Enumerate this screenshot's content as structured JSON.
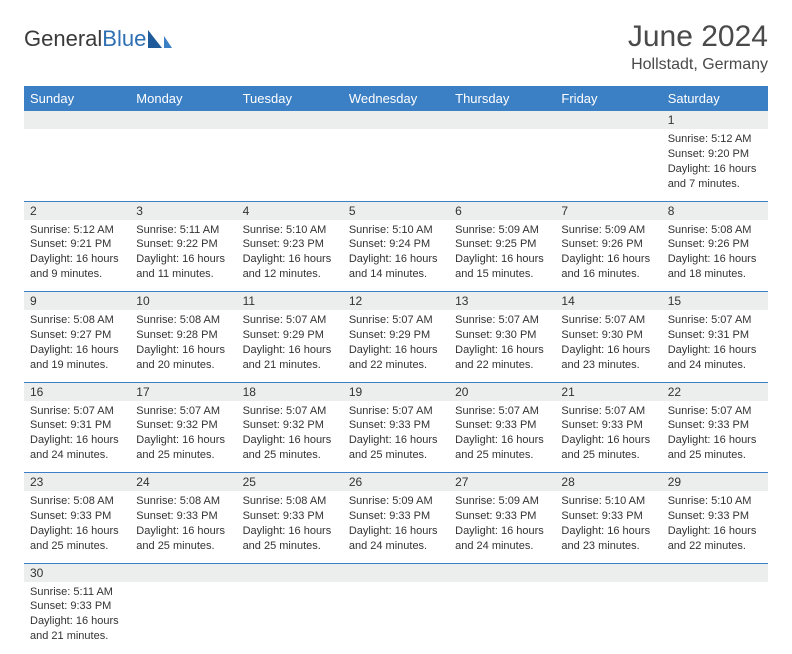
{
  "brand": {
    "general": "General",
    "blue": "Blue"
  },
  "title": "June 2024",
  "location": "Hollstadt, Germany",
  "colors": {
    "header_bg": "#3b7fc4",
    "header_text": "#ffffff",
    "daynum_bg": "#eceded",
    "border": "#3b7fc4",
    "text": "#333333",
    "brand_blue": "#2f6fb3"
  },
  "fonts": {
    "title_size": 30,
    "location_size": 16,
    "th_size": 13,
    "cell_size": 11
  },
  "weekdays": [
    "Sunday",
    "Monday",
    "Tuesday",
    "Wednesday",
    "Thursday",
    "Friday",
    "Saturday"
  ],
  "weeks": [
    {
      "nums": [
        "",
        "",
        "",
        "",
        "",
        "",
        "1"
      ],
      "cells": [
        null,
        null,
        null,
        null,
        null,
        null,
        {
          "sunrise": "Sunrise: 5:12 AM",
          "sunset": "Sunset: 9:20 PM",
          "d1": "Daylight: 16 hours",
          "d2": "and 7 minutes."
        }
      ]
    },
    {
      "nums": [
        "2",
        "3",
        "4",
        "5",
        "6",
        "7",
        "8"
      ],
      "cells": [
        {
          "sunrise": "Sunrise: 5:12 AM",
          "sunset": "Sunset: 9:21 PM",
          "d1": "Daylight: 16 hours",
          "d2": "and 9 minutes."
        },
        {
          "sunrise": "Sunrise: 5:11 AM",
          "sunset": "Sunset: 9:22 PM",
          "d1": "Daylight: 16 hours",
          "d2": "and 11 minutes."
        },
        {
          "sunrise": "Sunrise: 5:10 AM",
          "sunset": "Sunset: 9:23 PM",
          "d1": "Daylight: 16 hours",
          "d2": "and 12 minutes."
        },
        {
          "sunrise": "Sunrise: 5:10 AM",
          "sunset": "Sunset: 9:24 PM",
          "d1": "Daylight: 16 hours",
          "d2": "and 14 minutes."
        },
        {
          "sunrise": "Sunrise: 5:09 AM",
          "sunset": "Sunset: 9:25 PM",
          "d1": "Daylight: 16 hours",
          "d2": "and 15 minutes."
        },
        {
          "sunrise": "Sunrise: 5:09 AM",
          "sunset": "Sunset: 9:26 PM",
          "d1": "Daylight: 16 hours",
          "d2": "and 16 minutes."
        },
        {
          "sunrise": "Sunrise: 5:08 AM",
          "sunset": "Sunset: 9:26 PM",
          "d1": "Daylight: 16 hours",
          "d2": "and 18 minutes."
        }
      ]
    },
    {
      "nums": [
        "9",
        "10",
        "11",
        "12",
        "13",
        "14",
        "15"
      ],
      "cells": [
        {
          "sunrise": "Sunrise: 5:08 AM",
          "sunset": "Sunset: 9:27 PM",
          "d1": "Daylight: 16 hours",
          "d2": "and 19 minutes."
        },
        {
          "sunrise": "Sunrise: 5:08 AM",
          "sunset": "Sunset: 9:28 PM",
          "d1": "Daylight: 16 hours",
          "d2": "and 20 minutes."
        },
        {
          "sunrise": "Sunrise: 5:07 AM",
          "sunset": "Sunset: 9:29 PM",
          "d1": "Daylight: 16 hours",
          "d2": "and 21 minutes."
        },
        {
          "sunrise": "Sunrise: 5:07 AM",
          "sunset": "Sunset: 9:29 PM",
          "d1": "Daylight: 16 hours",
          "d2": "and 22 minutes."
        },
        {
          "sunrise": "Sunrise: 5:07 AM",
          "sunset": "Sunset: 9:30 PM",
          "d1": "Daylight: 16 hours",
          "d2": "and 22 minutes."
        },
        {
          "sunrise": "Sunrise: 5:07 AM",
          "sunset": "Sunset: 9:30 PM",
          "d1": "Daylight: 16 hours",
          "d2": "and 23 minutes."
        },
        {
          "sunrise": "Sunrise: 5:07 AM",
          "sunset": "Sunset: 9:31 PM",
          "d1": "Daylight: 16 hours",
          "d2": "and 24 minutes."
        }
      ]
    },
    {
      "nums": [
        "16",
        "17",
        "18",
        "19",
        "20",
        "21",
        "22"
      ],
      "cells": [
        {
          "sunrise": "Sunrise: 5:07 AM",
          "sunset": "Sunset: 9:31 PM",
          "d1": "Daylight: 16 hours",
          "d2": "and 24 minutes."
        },
        {
          "sunrise": "Sunrise: 5:07 AM",
          "sunset": "Sunset: 9:32 PM",
          "d1": "Daylight: 16 hours",
          "d2": "and 25 minutes."
        },
        {
          "sunrise": "Sunrise: 5:07 AM",
          "sunset": "Sunset: 9:32 PM",
          "d1": "Daylight: 16 hours",
          "d2": "and 25 minutes."
        },
        {
          "sunrise": "Sunrise: 5:07 AM",
          "sunset": "Sunset: 9:33 PM",
          "d1": "Daylight: 16 hours",
          "d2": "and 25 minutes."
        },
        {
          "sunrise": "Sunrise: 5:07 AM",
          "sunset": "Sunset: 9:33 PM",
          "d1": "Daylight: 16 hours",
          "d2": "and 25 minutes."
        },
        {
          "sunrise": "Sunrise: 5:07 AM",
          "sunset": "Sunset: 9:33 PM",
          "d1": "Daylight: 16 hours",
          "d2": "and 25 minutes."
        },
        {
          "sunrise": "Sunrise: 5:07 AM",
          "sunset": "Sunset: 9:33 PM",
          "d1": "Daylight: 16 hours",
          "d2": "and 25 minutes."
        }
      ]
    },
    {
      "nums": [
        "23",
        "24",
        "25",
        "26",
        "27",
        "28",
        "29"
      ],
      "cells": [
        {
          "sunrise": "Sunrise: 5:08 AM",
          "sunset": "Sunset: 9:33 PM",
          "d1": "Daylight: 16 hours",
          "d2": "and 25 minutes."
        },
        {
          "sunrise": "Sunrise: 5:08 AM",
          "sunset": "Sunset: 9:33 PM",
          "d1": "Daylight: 16 hours",
          "d2": "and 25 minutes."
        },
        {
          "sunrise": "Sunrise: 5:08 AM",
          "sunset": "Sunset: 9:33 PM",
          "d1": "Daylight: 16 hours",
          "d2": "and 25 minutes."
        },
        {
          "sunrise": "Sunrise: 5:09 AM",
          "sunset": "Sunset: 9:33 PM",
          "d1": "Daylight: 16 hours",
          "d2": "and 24 minutes."
        },
        {
          "sunrise": "Sunrise: 5:09 AM",
          "sunset": "Sunset: 9:33 PM",
          "d1": "Daylight: 16 hours",
          "d2": "and 24 minutes."
        },
        {
          "sunrise": "Sunrise: 5:10 AM",
          "sunset": "Sunset: 9:33 PM",
          "d1": "Daylight: 16 hours",
          "d2": "and 23 minutes."
        },
        {
          "sunrise": "Sunrise: 5:10 AM",
          "sunset": "Sunset: 9:33 PM",
          "d1": "Daylight: 16 hours",
          "d2": "and 22 minutes."
        }
      ]
    },
    {
      "nums": [
        "30",
        "",
        "",
        "",
        "",
        "",
        ""
      ],
      "cells": [
        {
          "sunrise": "Sunrise: 5:11 AM",
          "sunset": "Sunset: 9:33 PM",
          "d1": "Daylight: 16 hours",
          "d2": "and 21 minutes."
        },
        null,
        null,
        null,
        null,
        null,
        null
      ]
    }
  ]
}
